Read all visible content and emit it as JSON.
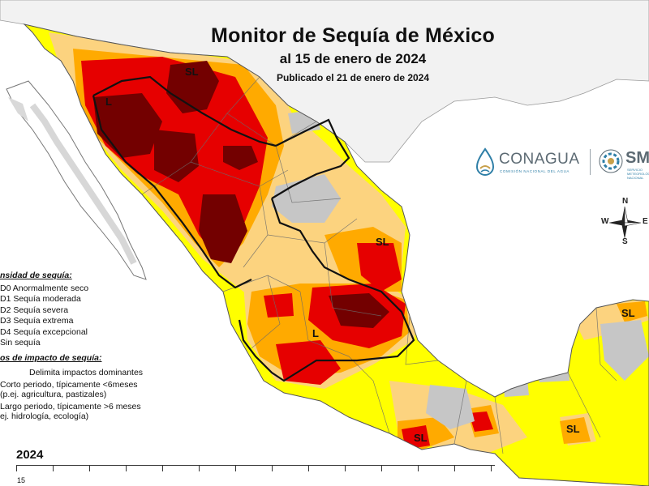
{
  "header": {
    "title": "Monitor de Sequía de México",
    "subtitle": "al 15 de enero de 2024",
    "published": "Publicado el 21 de enero de 2024"
  },
  "logos": {
    "conagua_name": "CONAGUA",
    "conagua_sub": "COMISIÓN NACIONAL DEL AGUA",
    "smn_name": "SM",
    "smn_sub": "SERVICIO METEOROLÓGICO NACIONAL"
  },
  "compass": {
    "north": "N",
    "south": "S",
    "east": "E",
    "west": "W"
  },
  "legend": {
    "intensity_heading": "nsidad de sequía:",
    "intensity_items": [
      {
        "label": "D0 Anormalmente seco",
        "color": "#ffff00"
      },
      {
        "label": "D1 Sequía moderada",
        "color": "#fcd37f"
      },
      {
        "label": "D2 Sequía severa",
        "color": "#ffaa00"
      },
      {
        "label": "D3 Sequía extrema",
        "color": "#e60000"
      },
      {
        "label": "D4 Sequía excepcional",
        "color": "#730000"
      },
      {
        "label": "Sin sequía",
        "color": "#ffffff"
      }
    ],
    "impact_heading": "os de impacto de sequía:",
    "impact_lines": [
      "Delimita impactos dominantes",
      "Corto periodo, típicamente <6meses",
      "(p.ej. agricultura, pastizales)",
      "Largo periodo, típicamente >6 meses",
      "ej. hidrología, ecología)"
    ]
  },
  "map_labels": [
    "SL",
    "L",
    "SL",
    "L",
    "SL",
    "SL",
    "SL"
  ],
  "timeline": {
    "year": "2024",
    "start_label": "15"
  }
}
